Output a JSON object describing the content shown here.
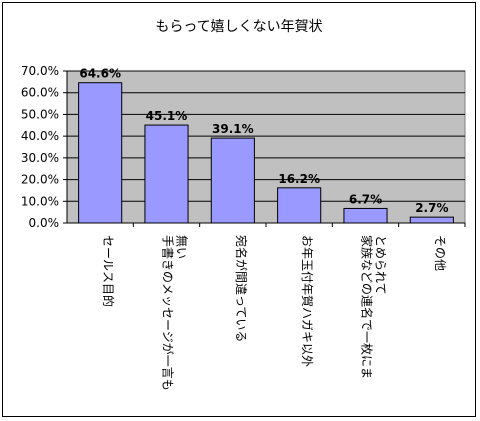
{
  "chart_data": {
    "type": "bar",
    "title": "もらって嬉しくない年賀状",
    "categories": [
      [
        "セールス目的"
      ],
      [
        "手書きのメッセージが一言も",
        "無い"
      ],
      [
        "宛名が間違っている"
      ],
      [
        "お年玉付年賀ハガキ以外"
      ],
      [
        "家族などの連名で一枚にま",
        "とめられて"
      ],
      [
        "その他"
      ]
    ],
    "values": [
      64.6,
      45.1,
      39.1,
      16.2,
      6.7,
      2.7
    ],
    "data_labels": [
      "64.6%",
      "45.1%",
      "39.1%",
      "16.2%",
      "6.7%",
      "2.7%"
    ],
    "y_ticks": [
      "0.0%",
      "10.0%",
      "20.0%",
      "30.0%",
      "40.0%",
      "50.0%",
      "60.0%",
      "70.0%"
    ],
    "ylim": [
      0,
      70
    ],
    "grid": true,
    "legend": "none",
    "colors": {
      "bar_fill": "#9999FF",
      "bar_stroke": "#000000",
      "plot_bg": "#C0C0C0",
      "gridline": "#000000"
    }
  }
}
